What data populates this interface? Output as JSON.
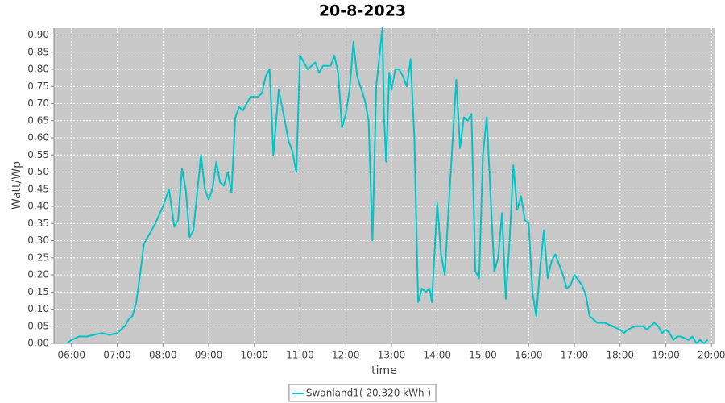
{
  "chart_data": {
    "type": "line",
    "title": "20-8-2023",
    "x_label": "time",
    "y_label": "Watt/Wp",
    "grid": true,
    "legend": "bottom",
    "background": "#c8c8c8",
    "xlim": [
      "05:37",
      "20:05"
    ],
    "xticks": [
      "06:00",
      "07:00",
      "08:00",
      "09:00",
      "10:00",
      "11:00",
      "12:00",
      "13:00",
      "14:00",
      "15:00",
      "16:00",
      "17:00",
      "18:00",
      "19:00",
      "20:00"
    ],
    "ylim": [
      0,
      0.92
    ],
    "yticks": [
      {
        "value": 0,
        "label": "0.00"
      },
      {
        "value": 0.05,
        "label": "0.05"
      },
      {
        "value": 0.1,
        "label": "0.10"
      },
      {
        "value": 0.15,
        "label": "0.15"
      },
      {
        "value": 0.2,
        "label": "0.20"
      },
      {
        "value": 0.25,
        "label": "0.25"
      },
      {
        "value": 0.3,
        "label": "0.30"
      },
      {
        "value": 0.35,
        "label": "0.35"
      },
      {
        "value": 0.4,
        "label": "0.40"
      },
      {
        "value": 0.45,
        "label": "0.45"
      },
      {
        "value": 0.5,
        "label": "0.50"
      },
      {
        "value": 0.55,
        "label": "0.55"
      },
      {
        "value": 0.6,
        "label": "0.60"
      },
      {
        "value": 0.65,
        "label": "0.65"
      },
      {
        "value": 0.7,
        "label": "0.70"
      },
      {
        "value": 0.75,
        "label": "0.75"
      },
      {
        "value": 0.8,
        "label": "0.80"
      },
      {
        "value": 0.85,
        "label": "0.85"
      },
      {
        "value": 0.9,
        "label": "0.90"
      }
    ],
    "x": [
      "05:54",
      "06:00",
      "06:10",
      "06:20",
      "06:30",
      "06:40",
      "06:50",
      "07:00",
      "07:10",
      "07:15",
      "07:20",
      "07:25",
      "07:30",
      "07:35",
      "07:40",
      "07:50",
      "08:00",
      "08:08",
      "08:15",
      "08:20",
      "08:25",
      "08:30",
      "08:35",
      "08:40",
      "08:50",
      "08:55",
      "09:00",
      "09:05",
      "09:10",
      "09:15",
      "09:20",
      "09:25",
      "09:30",
      "09:35",
      "09:40",
      "09:45",
      "09:50",
      "09:55",
      "10:05",
      "10:10",
      "10:15",
      "10:20",
      "10:25",
      "10:32",
      "10:40",
      "10:45",
      "10:50",
      "10:55",
      "11:00",
      "11:05",
      "11:10",
      "11:15",
      "11:20",
      "11:25",
      "11:30",
      "11:35",
      "11:40",
      "11:45",
      "11:50",
      "11:55",
      "12:00",
      "12:05",
      "12:10",
      "12:15",
      "12:25",
      "12:30",
      "12:35",
      "12:40",
      "12:48",
      "12:50",
      "12:53",
      "12:57",
      "13:00",
      "13:05",
      "13:10",
      "13:15",
      "13:20",
      "13:25",
      "13:30",
      "13:35",
      "13:40",
      "13:45",
      "13:50",
      "13:53",
      "14:00",
      "14:05",
      "14:10",
      "14:15",
      "14:25",
      "14:30",
      "14:35",
      "14:40",
      "14:45",
      "14:50",
      "14:55",
      "15:00",
      "15:05",
      "15:10",
      "15:15",
      "15:20",
      "15:25",
      "15:30",
      "15:35",
      "15:40",
      "15:45",
      "15:50",
      "15:55",
      "16:00",
      "16:05",
      "16:10",
      "16:15",
      "16:20",
      "16:25",
      "16:30",
      "16:35",
      "16:45",
      "16:50",
      "16:55",
      "17:00",
      "17:10",
      "17:15",
      "17:20",
      "17:25",
      "17:30",
      "17:40",
      "17:50",
      "18:00",
      "18:05",
      "18:10",
      "18:20",
      "18:25",
      "18:30",
      "18:35",
      "18:45",
      "18:50",
      "18:55",
      "19:00",
      "19:05",
      "19:10",
      "19:15",
      "19:20",
      "19:30",
      "19:35",
      "19:40",
      "19:45",
      "19:50",
      "19:55"
    ],
    "series": [
      {
        "name": "Swanland1( 20.320 kWh )",
        "color": "#00c4c8",
        "values": [
          0.0,
          0.01,
          0.02,
          0.02,
          0.025,
          0.03,
          0.025,
          0.03,
          0.05,
          0.07,
          0.08,
          0.12,
          0.2,
          0.29,
          0.31,
          0.35,
          0.4,
          0.45,
          0.34,
          0.36,
          0.51,
          0.45,
          0.31,
          0.33,
          0.55,
          0.45,
          0.42,
          0.45,
          0.53,
          0.47,
          0.46,
          0.5,
          0.44,
          0.66,
          0.69,
          0.68,
          0.7,
          0.72,
          0.72,
          0.73,
          0.78,
          0.8,
          0.55,
          0.74,
          0.65,
          0.59,
          0.56,
          0.5,
          0.84,
          0.82,
          0.8,
          0.81,
          0.82,
          0.79,
          0.81,
          0.81,
          0.81,
          0.84,
          0.79,
          0.63,
          0.67,
          0.74,
          0.88,
          0.78,
          0.71,
          0.65,
          0.3,
          0.75,
          0.92,
          0.67,
          0.53,
          0.79,
          0.74,
          0.8,
          0.8,
          0.78,
          0.75,
          0.83,
          0.6,
          0.12,
          0.16,
          0.15,
          0.16,
          0.12,
          0.41,
          0.26,
          0.2,
          0.4,
          0.77,
          0.57,
          0.66,
          0.65,
          0.67,
          0.21,
          0.19,
          0.55,
          0.66,
          0.43,
          0.21,
          0.25,
          0.38,
          0.13,
          0.3,
          0.52,
          0.39,
          0.43,
          0.36,
          0.35,
          0.15,
          0.08,
          0.22,
          0.33,
          0.19,
          0.24,
          0.26,
          0.2,
          0.16,
          0.17,
          0.2,
          0.17,
          0.14,
          0.08,
          0.07,
          0.06,
          0.06,
          0.05,
          0.04,
          0.03,
          0.04,
          0.05,
          0.05,
          0.05,
          0.04,
          0.06,
          0.05,
          0.03,
          0.04,
          0.03,
          0.01,
          0.02,
          0.02,
          0.01,
          0.02,
          0.0,
          0.01,
          0.0,
          0.01
        ]
      }
    ]
  }
}
